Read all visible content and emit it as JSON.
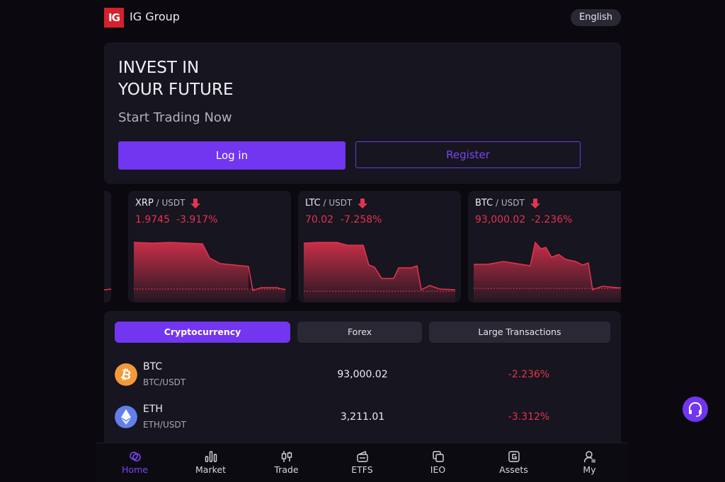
{
  "header": {
    "logo_text": "IG",
    "brand": "IG Group",
    "language": "English"
  },
  "hero": {
    "title_line1": "INVEST IN",
    "title_line2": "YOUR FUTURE",
    "subtitle": "Start Trading Now",
    "login_label": "Log in",
    "register_label": "Register"
  },
  "tickers": [
    {
      "symbol": "XRP",
      "pair": " / USDT",
      "price": "1.9745",
      "change": "-3.917%",
      "direction": "down"
    },
    {
      "symbol": "LTC",
      "pair": " / USDT",
      "price": "70.02",
      "change": "-7.258%",
      "direction": "down"
    },
    {
      "symbol": "BTC",
      "pair": " / USDT",
      "price": "93,000.02",
      "change": "-2.236%",
      "direction": "down"
    }
  ],
  "market": {
    "tabs": [
      {
        "label": "Cryptocurrency",
        "active": true
      },
      {
        "label": "Forex",
        "active": false
      },
      {
        "label": "Large Transactions",
        "active": false
      }
    ],
    "rows": [
      {
        "name": "BTC",
        "pair": "BTC/USDT",
        "price": "93,000.02",
        "change": "-2.236%",
        "icon": "bitcoin-icon"
      },
      {
        "name": "ETH",
        "pair": "ETH/USDT",
        "price": "3,211.01",
        "change": "-3.312%",
        "icon": "ethereum-icon"
      }
    ]
  },
  "nav": {
    "items": [
      {
        "label": "Home",
        "icon": "home-icon",
        "active": true
      },
      {
        "label": "Market",
        "icon": "market-icon"
      },
      {
        "label": "Trade",
        "icon": "trade-icon"
      },
      {
        "label": "ETFS",
        "icon": "etfs-icon"
      },
      {
        "label": "IEO",
        "icon": "ieo-icon"
      },
      {
        "label": "Assets",
        "icon": "assets-icon"
      },
      {
        "label": "My",
        "icon": "user-icon"
      }
    ]
  },
  "colors": {
    "accent": "#7235f0",
    "negative": "#e5334f",
    "panel": "#17151f",
    "background": "#0b080f"
  }
}
